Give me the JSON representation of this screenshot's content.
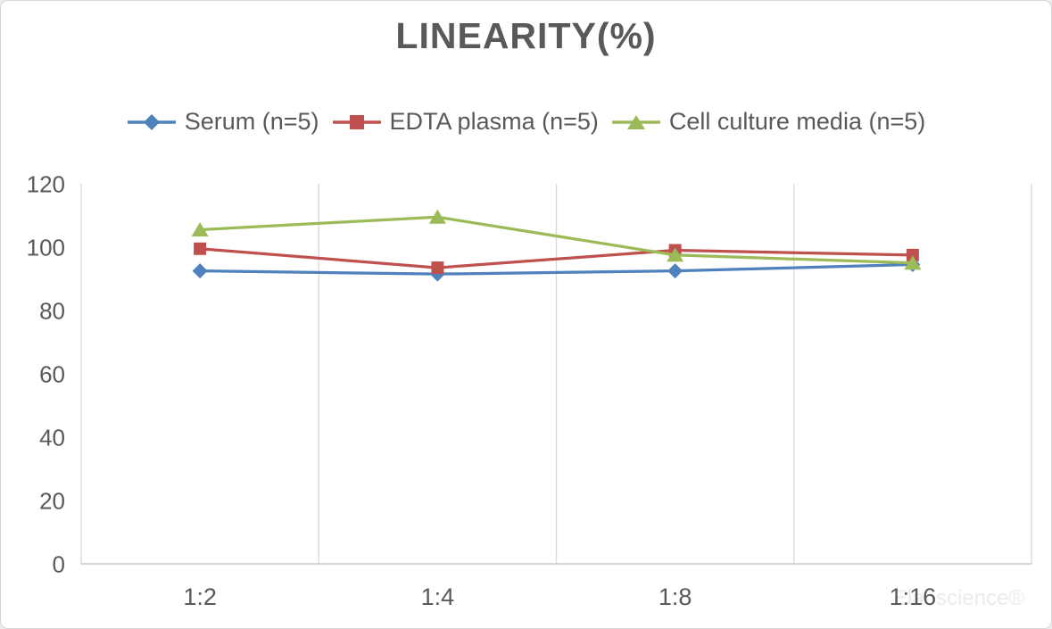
{
  "chart_data": {
    "type": "line",
    "title": "LINEARITY(%)",
    "categories": [
      "1:2",
      "1:4",
      "1:8",
      "1:16"
    ],
    "xlabel": "",
    "ylabel": "",
    "ylim": [
      0,
      120
    ],
    "y_ticks": [
      0,
      20,
      40,
      60,
      80,
      100,
      120
    ],
    "grid": "vertical-only",
    "legend_position": "top",
    "watermark": "Elabscience®",
    "series": [
      {
        "name": "Serum (n=5)",
        "marker": "diamond",
        "color": "#4F81BD",
        "values": [
          92.5,
          91.5,
          92.5,
          94.5
        ]
      },
      {
        "name": "EDTA plasma (n=5)",
        "marker": "square",
        "color": "#C0504D",
        "values": [
          99.5,
          93.5,
          99,
          97.5
        ]
      },
      {
        "name": "Cell culture media (n=5)",
        "marker": "triangle",
        "color": "#9BBB59",
        "values": [
          105.5,
          109.5,
          97.5,
          95
        ]
      }
    ],
    "colors": {
      "title_text": "#595959",
      "axis_text": "#595959",
      "gridline": "#D9D9D9",
      "axis_line": "#C8C8C8",
      "watermark_text": "#EBEBEB"
    }
  }
}
